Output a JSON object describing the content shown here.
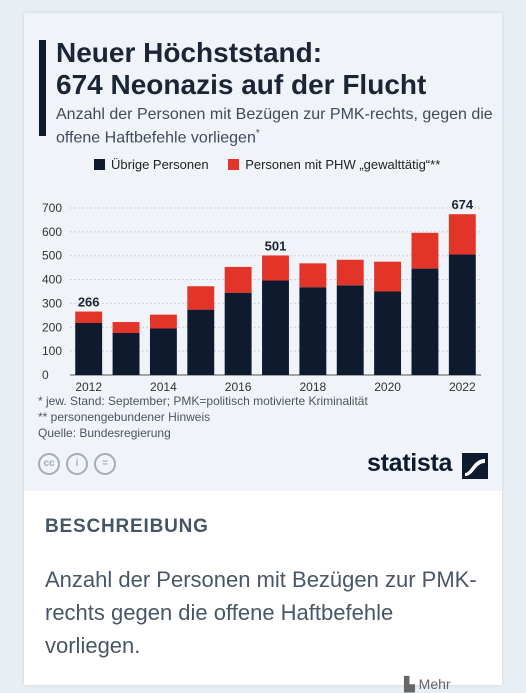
{
  "title_line1": "Neuer Höchststand:",
  "title_line2": "674 Neonazis auf der Flucht",
  "subtitle": "Anzahl der Personen mit Bezügen zur PMK-rechts, gegen die offene Haftbefehle vorliegen",
  "subtitle_mark": "*",
  "chart_data": {
    "type": "bar",
    "stacked": true,
    "categories": [
      "2012",
      "2013",
      "2014",
      "2015",
      "2016",
      "2017",
      "2018",
      "2019",
      "2020",
      "2021",
      "2022"
    ],
    "x_tick_labels": [
      "2012",
      "2014",
      "2016",
      "2018",
      "2020",
      "2022"
    ],
    "series": [
      {
        "name": "Übrige Personen",
        "color": "#0e1a2e",
        "values": [
          218,
          176,
          195,
          274,
          345,
          396,
          368,
          376,
          350,
          446,
          505
        ]
      },
      {
        "name": "Personen mit PHW „gewalttätig“**",
        "color": "#e3342a",
        "values": [
          48,
          46,
          58,
          98,
          108,
          105,
          100,
          107,
          125,
          150,
          169
        ]
      }
    ],
    "data_labels": [
      {
        "category": "2012",
        "label": "266"
      },
      {
        "category": "2017",
        "label": "501"
      },
      {
        "category": "2022",
        "label": "674"
      }
    ],
    "y_ticks": [
      0,
      100,
      200,
      300,
      400,
      500,
      600,
      700
    ],
    "ylim": [
      0,
      700
    ],
    "grid": true,
    "legend_position": "top"
  },
  "footnotes": [
    "*  jew. Stand: September; PMK=politisch motivierte Kriminalität",
    "** personengebundener Hinweis",
    "Quelle: Bundesregierung"
  ],
  "brand": "statista",
  "cc_icons": [
    "cc-icon",
    "by-icon",
    "nd-icon"
  ],
  "description_heading": "BESCHREIBUNG",
  "description_text": "Anzahl der Personen mit Bezügen zur PMK-rechts gegen die offene Haftbefehle vorliegen.",
  "more_label": "Mehr"
}
